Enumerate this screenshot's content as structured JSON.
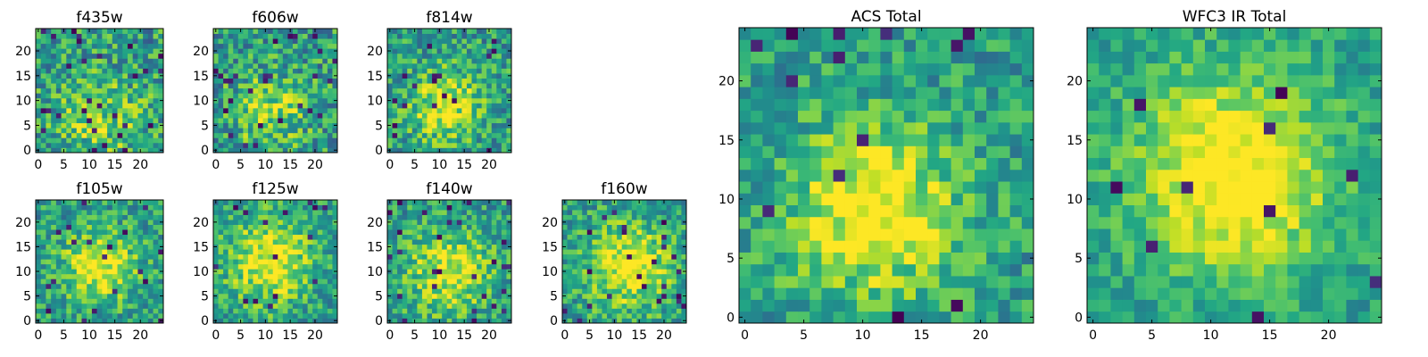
{
  "chart_data": [
    {
      "type": "heatmap",
      "title": "f435w",
      "size": 25,
      "xlim": [
        0,
        24
      ],
      "ylim": [
        0,
        24
      ],
      "xticks": [
        0,
        5,
        10,
        15,
        20
      ],
      "yticks": [
        0,
        5,
        10,
        15,
        20
      ],
      "colormap": "viridis",
      "seed": 11,
      "blob_center": [
        12,
        6
      ],
      "blob_sigma": 6,
      "blob_strength": 0.25,
      "noise": 0.55,
      "dark_fraction": 0.04
    },
    {
      "type": "heatmap",
      "title": "f606w",
      "size": 25,
      "xlim": [
        0,
        24
      ],
      "ylim": [
        0,
        24
      ],
      "xticks": [
        0,
        5,
        10,
        15,
        20
      ],
      "yticks": [
        0,
        5,
        10,
        15,
        20
      ],
      "colormap": "viridis",
      "seed": 23,
      "blob_center": [
        11,
        8
      ],
      "blob_sigma": 5,
      "blob_strength": 0.3,
      "noise": 0.55,
      "dark_fraction": 0.04
    },
    {
      "type": "heatmap",
      "title": "f814w",
      "size": 25,
      "xlim": [
        0,
        24
      ],
      "ylim": [
        0,
        24
      ],
      "xticks": [
        0,
        5,
        10,
        15,
        20
      ],
      "yticks": [
        0,
        5,
        10,
        15,
        20
      ],
      "colormap": "viridis",
      "seed": 37,
      "blob_center": [
        11,
        9
      ],
      "blob_sigma": 5,
      "blob_strength": 0.4,
      "noise": 0.5,
      "dark_fraction": 0.03
    },
    {
      "type": "heatmap",
      "title": "f105w",
      "size": 25,
      "xlim": [
        0,
        24
      ],
      "ylim": [
        0,
        24
      ],
      "xticks": [
        0,
        5,
        10,
        15,
        20
      ],
      "yticks": [
        0,
        5,
        10,
        15,
        20
      ],
      "colormap": "viridis",
      "seed": 41,
      "blob_center": [
        12,
        11
      ],
      "blob_sigma": 5,
      "blob_strength": 0.45,
      "noise": 0.45,
      "dark_fraction": 0.04
    },
    {
      "type": "heatmap",
      "title": "f125w",
      "size": 25,
      "xlim": [
        0,
        24
      ],
      "ylim": [
        0,
        24
      ],
      "xticks": [
        0,
        5,
        10,
        15,
        20
      ],
      "yticks": [
        0,
        5,
        10,
        15,
        20
      ],
      "colormap": "viridis",
      "seed": 53,
      "blob_center": [
        11,
        12
      ],
      "blob_sigma": 6,
      "blob_strength": 0.45,
      "noise": 0.45,
      "dark_fraction": 0.03
    },
    {
      "type": "heatmap",
      "title": "f140w",
      "size": 25,
      "xlim": [
        0,
        24
      ],
      "ylim": [
        0,
        24
      ],
      "xticks": [
        0,
        5,
        10,
        15,
        20
      ],
      "yticks": [
        0,
        5,
        10,
        15,
        20
      ],
      "colormap": "viridis",
      "seed": 67,
      "blob_center": [
        12,
        10
      ],
      "blob_sigma": 6,
      "blob_strength": 0.4,
      "noise": 0.45,
      "dark_fraction": 0.04
    },
    {
      "type": "heatmap",
      "title": "f160w",
      "size": 25,
      "xlim": [
        0,
        24
      ],
      "ylim": [
        0,
        24
      ],
      "xticks": [
        0,
        5,
        10,
        15,
        20
      ],
      "yticks": [
        0,
        5,
        10,
        15,
        20
      ],
      "colormap": "viridis",
      "seed": 79,
      "blob_center": [
        13,
        11
      ],
      "blob_sigma": 6,
      "blob_strength": 0.45,
      "noise": 0.45,
      "dark_fraction": 0.04
    },
    {
      "type": "heatmap",
      "title": "ACS Total",
      "size": 25,
      "xlim": [
        0,
        24
      ],
      "ylim": [
        0,
        24
      ],
      "xticks": [
        0,
        5,
        10,
        15,
        20
      ],
      "yticks": [
        0,
        5,
        10,
        15,
        20
      ],
      "colormap": "viridis",
      "seed": 97,
      "blob_center": [
        11,
        9
      ],
      "blob_sigma": 5,
      "blob_strength": 0.5,
      "noise": 0.4,
      "dark_fraction": 0.03
    },
    {
      "type": "heatmap",
      "title": "WFC3 IR Total",
      "size": 25,
      "xlim": [
        0,
        24
      ],
      "ylim": [
        0,
        24
      ],
      "xticks": [
        0,
        5,
        10,
        15,
        20
      ],
      "yticks": [
        0,
        5,
        10,
        15,
        20
      ],
      "colormap": "viridis",
      "seed": 131,
      "blob_center": [
        12,
        12
      ],
      "blob_sigma": 6,
      "blob_strength": 0.55,
      "noise": 0.3,
      "dark_fraction": 0.02
    }
  ]
}
